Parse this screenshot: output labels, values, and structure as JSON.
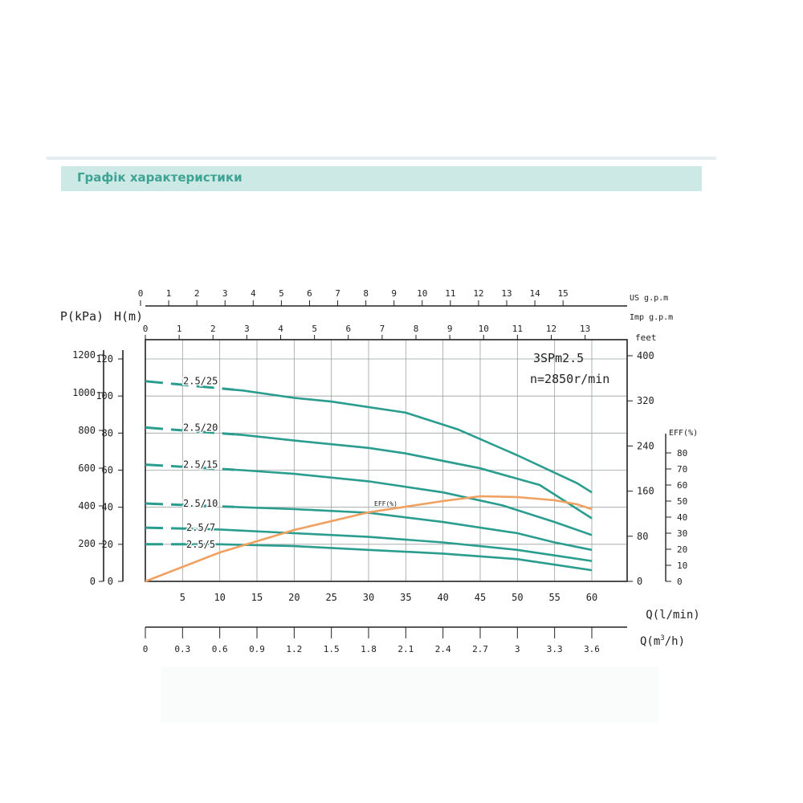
{
  "header": {
    "title": "Графік характеристики"
  },
  "chart_data": {
    "type": "line",
    "model_label": "3SPm2.5",
    "speed_label": "n=2850r/min",
    "axis_labels": {
      "pressure": "P(kPa)",
      "head": "H(m)",
      "feet": "feet",
      "eff": "EFF(%)",
      "us_gpm": "US g.p.m",
      "imp_gpm": "Imp g.p.m",
      "q_lmin": "Q(l/min)",
      "q_m3h_prefix": "Q(m",
      "q_m3h_exp": "3",
      "q_m3h_suffix": "/h)"
    },
    "ticks": {
      "x_lmin": [
        "5",
        "10",
        "15",
        "20",
        "25",
        "30",
        "35",
        "40",
        "45",
        "50",
        "55",
        "60"
      ],
      "x_m3h": [
        "0",
        "0.3",
        "0.6",
        "0.9",
        "1.2",
        "1.5",
        "1.8",
        "2.1",
        "2.4",
        "2.7",
        "3",
        "3.3",
        "3.6"
      ],
      "us_gpm": [
        "0",
        "1",
        "2",
        "3",
        "4",
        "5",
        "6",
        "7",
        "8",
        "9",
        "10",
        "11",
        "12",
        "13",
        "14",
        "15"
      ],
      "imp_gpm": [
        "0",
        "1",
        "2",
        "3",
        "4",
        "5",
        "6",
        "7",
        "8",
        "9",
        "10",
        "11",
        "12",
        "13"
      ],
      "head_m": [
        "0",
        "20",
        "40",
        "60",
        "80",
        "100",
        "120"
      ],
      "pressure_kpa": [
        "0",
        "200",
        "400",
        "600",
        "800",
        "1000",
        "1200"
      ],
      "feet": [
        "0",
        "80",
        "160",
        "240",
        "320",
        "400"
      ],
      "eff_pct": [
        "0",
        "10",
        "20",
        "30",
        "40",
        "50",
        "60",
        "70",
        "80"
      ]
    },
    "xlim": [
      0,
      60
    ],
    "ylim": [
      0,
      120
    ],
    "grid": true,
    "series": [
      {
        "name": "2.5/25",
        "dashed_end_x": 12,
        "points": [
          [
            0,
            108
          ],
          [
            13,
            103
          ],
          [
            20,
            99
          ],
          [
            25,
            97
          ],
          [
            35,
            91
          ],
          [
            42,
            82
          ],
          [
            50,
            68
          ],
          [
            58,
            53
          ],
          [
            60,
            48
          ]
        ]
      },
      {
        "name": "2.5/20",
        "dashed_end_x": 12,
        "points": [
          [
            0,
            83
          ],
          [
            13,
            79
          ],
          [
            20,
            76
          ],
          [
            30,
            72
          ],
          [
            35,
            69
          ],
          [
            45,
            61
          ],
          [
            53,
            52
          ],
          [
            60,
            34
          ]
        ]
      },
      {
        "name": "2.5/15",
        "dashed_end_x": 12,
        "points": [
          [
            0,
            63
          ],
          [
            13,
            60
          ],
          [
            20,
            58
          ],
          [
            30,
            54
          ],
          [
            40,
            48
          ],
          [
            48,
            41
          ],
          [
            55,
            32
          ],
          [
            60,
            25
          ]
        ]
      },
      {
        "name": "2.5/10",
        "dashed_end_x": 12,
        "points": [
          [
            0,
            42
          ],
          [
            13,
            40
          ],
          [
            20,
            39
          ],
          [
            30,
            37
          ],
          [
            40,
            32
          ],
          [
            50,
            26
          ],
          [
            55,
            21
          ],
          [
            60,
            17
          ]
        ]
      },
      {
        "name": "2.5/7",
        "dashed_end_x": 6,
        "points": [
          [
            0,
            29
          ],
          [
            10,
            28
          ],
          [
            20,
            26
          ],
          [
            30,
            24
          ],
          [
            40,
            21
          ],
          [
            50,
            17
          ],
          [
            55,
            14
          ],
          [
            60,
            11
          ]
        ]
      },
      {
        "name": "2.5/5",
        "dashed_end_x": 6,
        "points": [
          [
            0,
            20
          ],
          [
            10,
            20
          ],
          [
            20,
            19
          ],
          [
            30,
            17
          ],
          [
            40,
            15
          ],
          [
            50,
            12
          ],
          [
            55,
            9
          ],
          [
            60,
            6
          ]
        ]
      }
    ],
    "efficiency": {
      "label": "EFF(%)",
      "points_pct": [
        [
          0,
          0
        ],
        [
          10,
          18
        ],
        [
          20,
          32
        ],
        [
          30,
          43
        ],
        [
          40,
          50
        ],
        [
          45,
          53
        ],
        [
          50,
          52.5
        ],
        [
          55,
          50.5
        ],
        [
          58,
          48
        ],
        [
          60,
          45
        ]
      ]
    }
  },
  "colors": {
    "curve": "#2a9d8f",
    "efficiency": "#f0a060",
    "grid": "#9aa0a0",
    "axis": "#222222",
    "header_band": "#cde9e5",
    "header_text": "#3fa394"
  }
}
